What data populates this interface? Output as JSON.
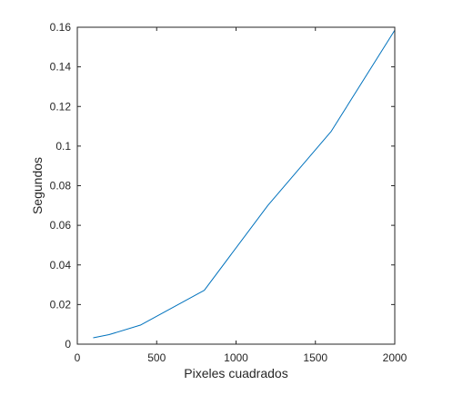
{
  "chart_data": {
    "type": "line",
    "title": "",
    "xlabel": "Pixeles cuadrados",
    "ylabel": "Segundos",
    "xlim": [
      0,
      2000
    ],
    "ylim": [
      0,
      0.16
    ],
    "xticks": [
      0,
      500,
      1000,
      1500,
      2000
    ],
    "xtick_labels": [
      "0",
      "500",
      "1000",
      "1500",
      "2000"
    ],
    "yticks": [
      0,
      0.02,
      0.04,
      0.06,
      0.08,
      0.1,
      0.12,
      0.14,
      0.16
    ],
    "ytick_labels": [
      "0",
      "0.02",
      "0.04",
      "0.06",
      "0.08",
      "0.1",
      "0.12",
      "0.14",
      "0.16"
    ],
    "grid": false,
    "legend": false,
    "series": [
      {
        "color": "#0072BD",
        "x": [
          100,
          200,
          400,
          800,
          1200,
          1600,
          2000
        ],
        "y": [
          0.0032,
          0.0048,
          0.0097,
          0.0272,
          0.07,
          0.1075,
          0.1585
        ]
      }
    ]
  }
}
